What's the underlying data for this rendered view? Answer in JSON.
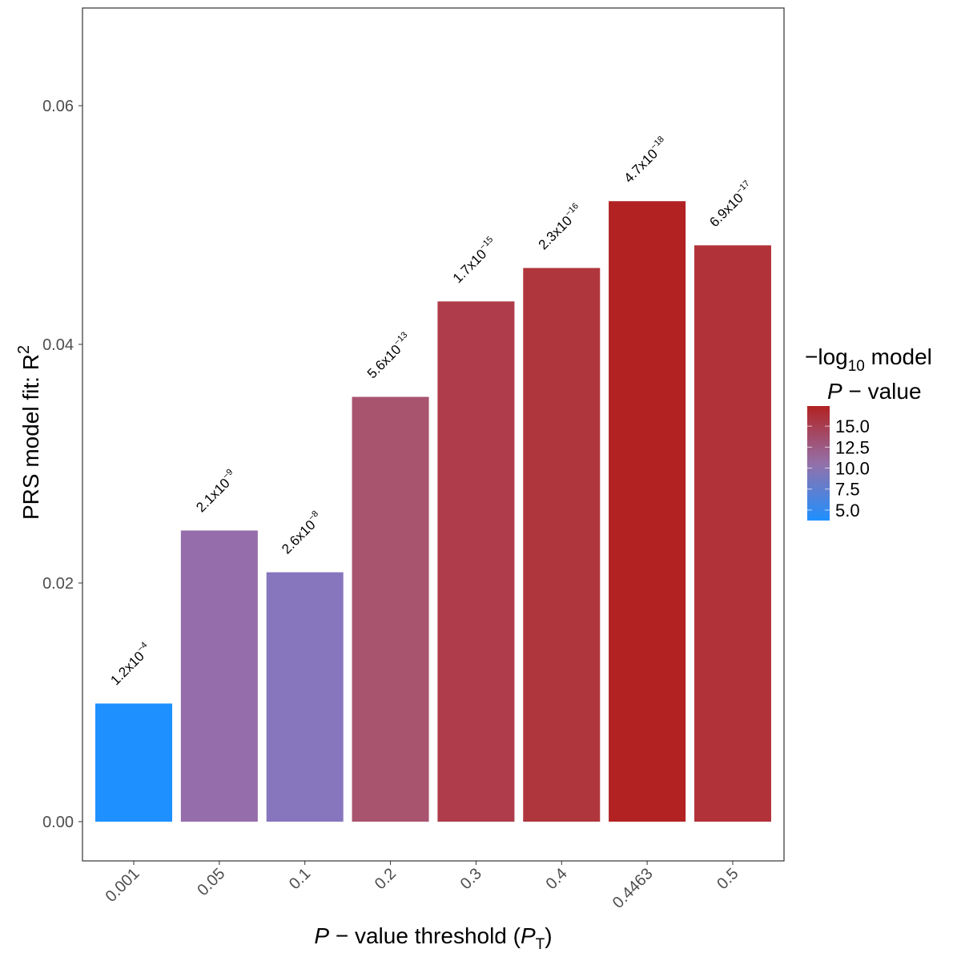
{
  "chart_data": {
    "type": "bar",
    "categories": [
      "0.001",
      "0.05",
      "0.1",
      "0.2",
      "0.3",
      "0.4",
      "0.4463",
      "0.5"
    ],
    "values": [
      0.0099,
      0.0244,
      0.0209,
      0.0356,
      0.0436,
      0.0464,
      0.052,
      0.0483
    ],
    "bar_labels": [
      {
        "mantissa": "1.2x10",
        "exponent": "−4"
      },
      {
        "mantissa": "2.1x10",
        "exponent": "−9"
      },
      {
        "mantissa": "2.6x10",
        "exponent": "−8"
      },
      {
        "mantissa": "5.6x10",
        "exponent": "−13"
      },
      {
        "mantissa": "1.7x10",
        "exponent": "−15"
      },
      {
        "mantissa": "2.3x10",
        "exponent": "−16"
      },
      {
        "mantissa": "4.7x10",
        "exponent": "−18"
      },
      {
        "mantissa": "6.9x10",
        "exponent": "−17"
      }
    ],
    "bar_colors": [
      "#1E90FF",
      "#956DAB",
      "#8776BE",
      "#A8546F",
      "#AF3C4A",
      "#B0363D",
      "#B22222",
      "#B2323A"
    ],
    "ylim": [
      -0.0031,
      0.0683
    ],
    "yticks": [
      "0.00",
      "0.02",
      "0.04",
      "0.06"
    ],
    "ytick_values": [
      0,
      0.02,
      0.04,
      0.06
    ],
    "xlabel": {
      "p": "P",
      "rest": " − value threshold (",
      "pt": "P",
      "sub": "T",
      "close": ")"
    },
    "ylabel": {
      "text": "PRS model fit:  R",
      "sup": "2"
    },
    "grid": false,
    "legend": {
      "position": "right",
      "title_line1": {
        "minus": "−log",
        "sub": "10",
        "rest": " model"
      },
      "title_line2": {
        "p": "P",
        "rest": " − value"
      },
      "ticks": [
        "15.0",
        "12.5",
        "10.0",
        "7.5",
        "5.0"
      ],
      "tick_values": [
        15,
        12.5,
        10,
        7.5,
        5
      ],
      "range": [
        3.75,
        17.4
      ],
      "low_color": "#1E90FF",
      "high_color": "#B22222"
    }
  }
}
